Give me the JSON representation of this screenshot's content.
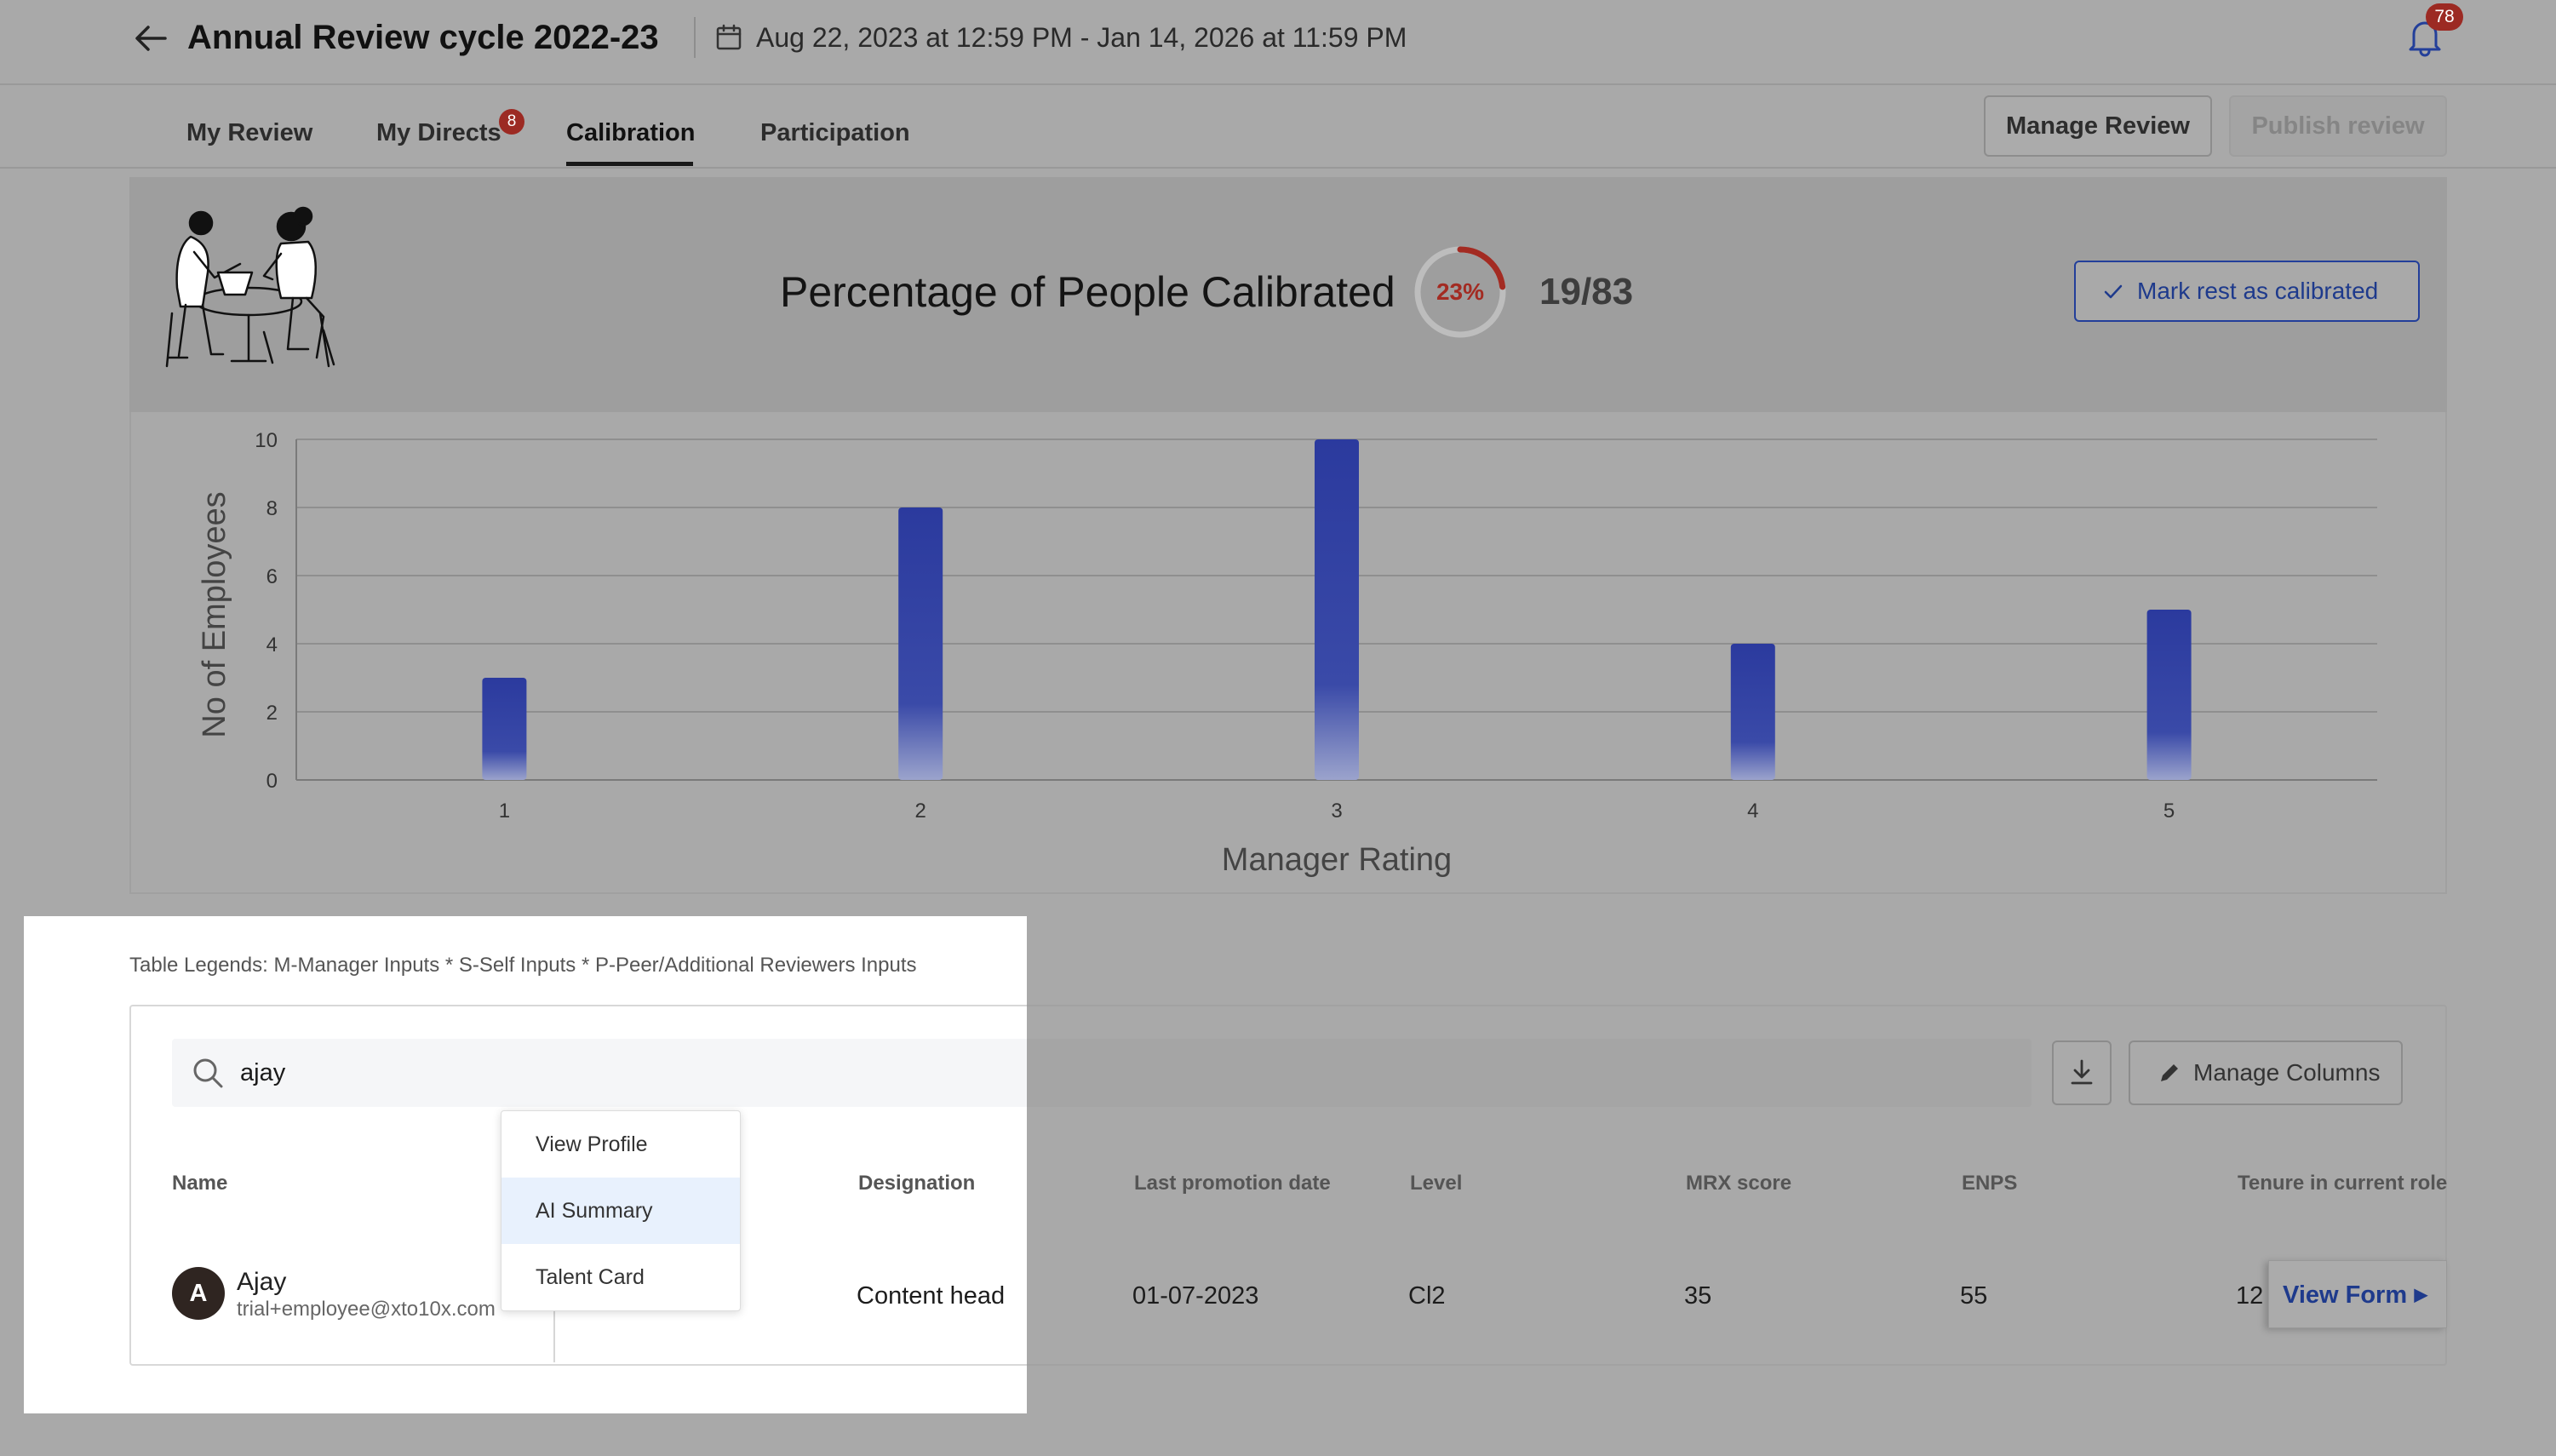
{
  "header": {
    "title": "Annual Review cycle 2022-23",
    "date_range": "Aug 22, 2023 at 12:59 PM - Jan 14, 2026 at 11:59 PM",
    "notification_count": "78"
  },
  "tabs": [
    {
      "label": "My Review"
    },
    {
      "label": "My Directs",
      "badge": "8"
    },
    {
      "label": "Calibration",
      "active": true
    },
    {
      "label": "Participation"
    }
  ],
  "actions": {
    "manage_review": "Manage Review",
    "publish_review": "Publish review"
  },
  "calibration": {
    "label": "Percentage of People Calibrated",
    "percent_text": "23%",
    "percent": 23,
    "fraction": "19/83",
    "mark_button": "Mark rest as calibrated"
  },
  "chart_data": {
    "type": "bar",
    "categories": [
      "1",
      "2",
      "3",
      "4",
      "5"
    ],
    "values": [
      3,
      8,
      10,
      4,
      5
    ],
    "xlabel": "Manager Rating",
    "ylabel": "No of Employees",
    "ylim": [
      0,
      10
    ],
    "yticks": [
      "0",
      "2",
      "4",
      "6",
      "8",
      "10"
    ],
    "grid": true,
    "bar_color": "#2b3a9e"
  },
  "table": {
    "legend": "Table Legends: M-Manager Inputs * S-Self Inputs * P-Peer/Additional Reviewers Inputs",
    "search_value": "ajay",
    "manage_columns": "Manage Columns",
    "headers": {
      "name": "Name",
      "designation": "Designation",
      "last_promotion": "Last promotion date",
      "level": "Level",
      "mrx": "MRX score",
      "enps": "ENPS",
      "tenure": "Tenure in current role"
    },
    "row": {
      "avatar": "A",
      "name": "Ajay",
      "email": "trial+employee@xto10x.com",
      "designation": "Content head",
      "last_promotion": "01-07-2023",
      "level": "Cl2",
      "mrx": "35",
      "enps": "55",
      "tenure": "12",
      "view_form": "View Form"
    }
  },
  "context_menu": [
    "View Profile",
    "AI Summary",
    "Talent Card"
  ]
}
